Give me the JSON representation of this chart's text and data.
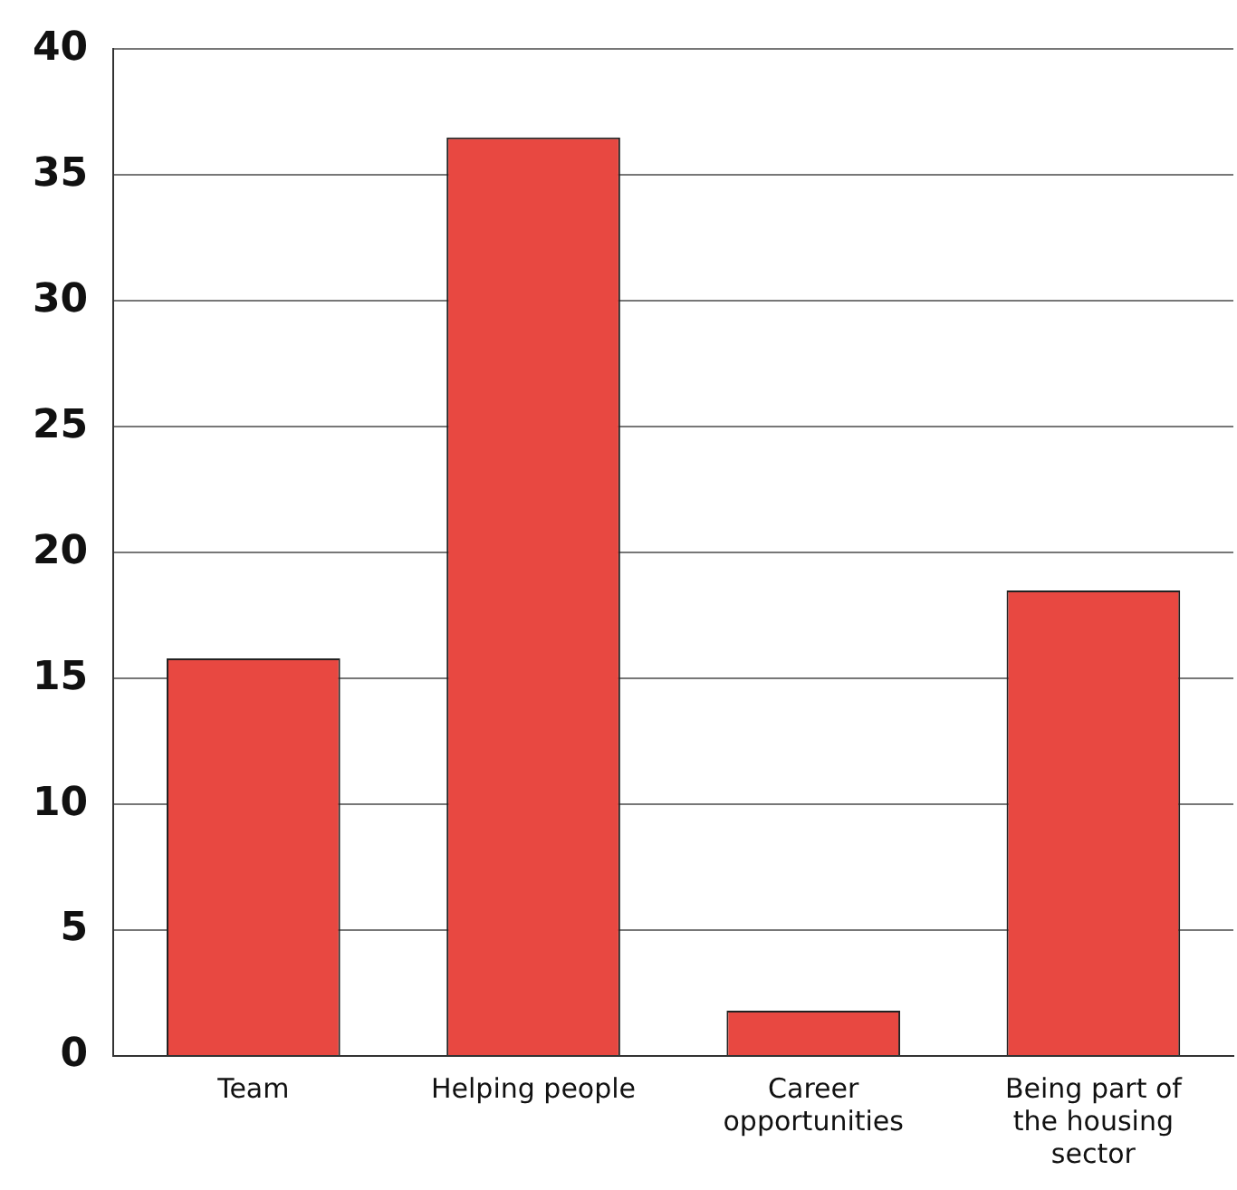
{
  "chart_data": {
    "type": "bar",
    "categories": [
      "Team",
      "Helping people",
      "Career opportunities",
      "Being part of the housing sector"
    ],
    "values": [
      15.8,
      36.5,
      1.8,
      18.5
    ],
    "color": "#e84841",
    "ylim": [
      0,
      40
    ],
    "yticks": [
      0,
      5,
      10,
      15,
      20,
      25,
      30,
      35,
      40
    ],
    "grid": "y",
    "legend": false
  }
}
